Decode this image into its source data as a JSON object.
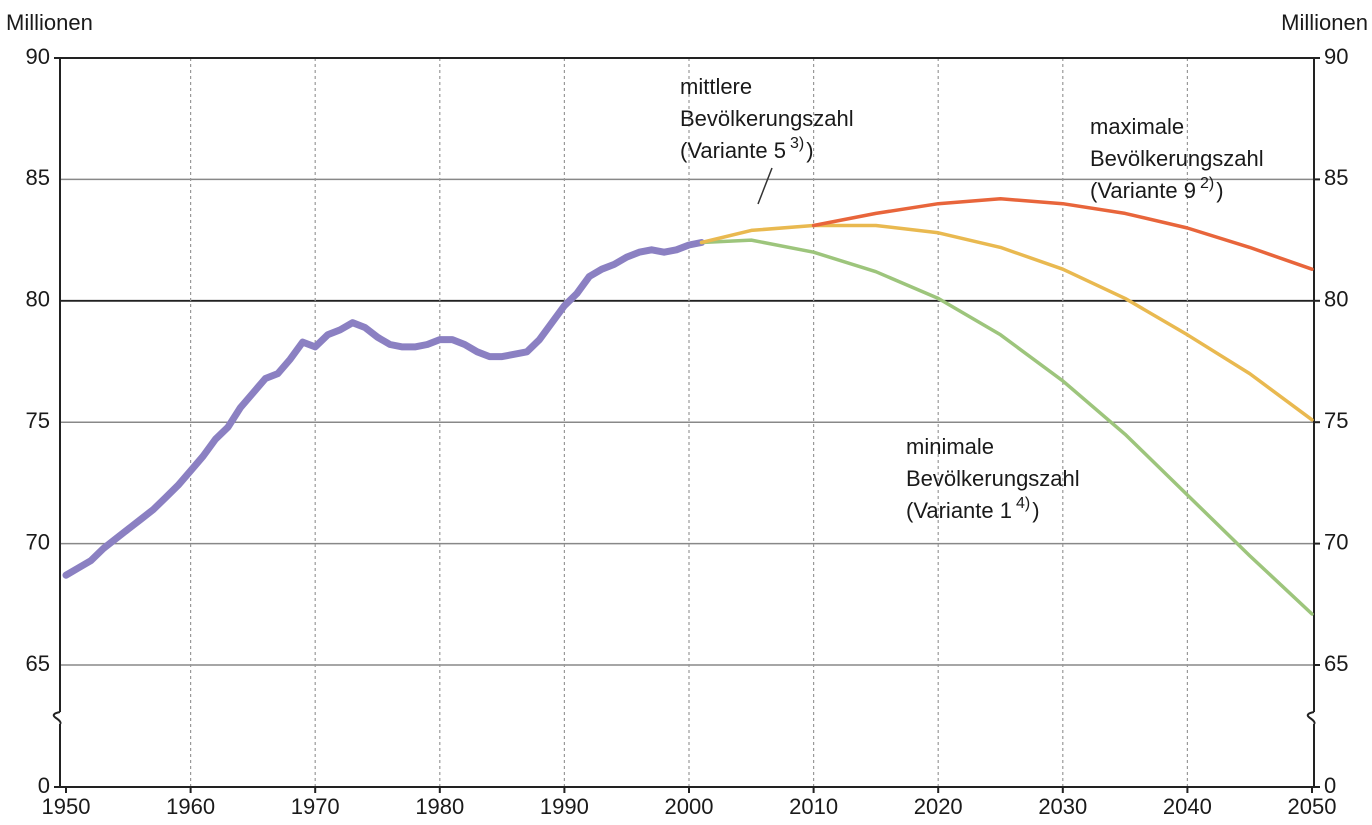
{
  "chart_data": {
    "type": "line",
    "y_label": "Millionen",
    "y2_label": "Millionen",
    "x": [
      1950,
      1951,
      1952,
      1953,
      1954,
      1955,
      1956,
      1957,
      1958,
      1959,
      1960,
      1961,
      1962,
      1963,
      1964,
      1965,
      1966,
      1967,
      1968,
      1969,
      1970,
      1971,
      1972,
      1973,
      1974,
      1975,
      1976,
      1977,
      1978,
      1979,
      1980,
      1981,
      1982,
      1983,
      1984,
      1985,
      1986,
      1987,
      1988,
      1989,
      1990,
      1991,
      1992,
      1993,
      1994,
      1995,
      1996,
      1997,
      1998,
      1999,
      2000,
      2001,
      2005,
      2010,
      2015,
      2020,
      2025,
      2030,
      2035,
      2040,
      2045,
      2050
    ],
    "series": [
      {
        "color": "#8b80c2",
        "width": 7,
        "values": [
          68.7,
          69.0,
          69.3,
          69.8,
          70.2,
          70.6,
          71.0,
          71.4,
          71.9,
          72.4,
          73.0,
          73.6,
          74.3,
          74.8,
          75.6,
          76.2,
          76.8,
          77.0,
          77.6,
          78.3,
          78.1,
          78.6,
          78.8,
          79.1,
          78.9,
          78.5,
          78.2,
          78.1,
          78.1,
          78.2,
          78.4,
          78.4,
          78.2,
          77.9,
          77.7,
          77.7,
          77.8,
          77.9,
          78.4,
          79.1,
          79.8,
          80.3,
          81.0,
          81.3,
          81.5,
          81.8,
          82.0,
          82.1,
          82.0,
          82.1,
          82.3,
          82.4,
          null,
          null,
          null,
          null,
          null,
          null,
          null,
          null,
          null,
          null
        ]
      },
      {
        "color": "#e9b950",
        "width": 3.5,
        "label": {
          "lines": [
            "mittlere",
            "Bevölkerungszahl"
          ],
          "variant": "(Variante 5",
          "note": "3)",
          "close": ")"
        },
        "values": [
          null,
          null,
          null,
          null,
          null,
          null,
          null,
          null,
          null,
          null,
          null,
          null,
          null,
          null,
          null,
          null,
          null,
          null,
          null,
          null,
          null,
          null,
          null,
          null,
          null,
          null,
          null,
          null,
          null,
          null,
          null,
          null,
          null,
          null,
          null,
          null,
          null,
          null,
          null,
          null,
          null,
          null,
          null,
          null,
          null,
          null,
          null,
          null,
          null,
          null,
          null,
          82.4,
          82.9,
          83.1,
          83.1,
          82.8,
          82.2,
          81.3,
          80.1,
          78.6,
          77.0,
          75.1
        ]
      },
      {
        "color": "#e8653b",
        "width": 3.5,
        "label": {
          "lines": [
            "maximale",
            "Bevölkerungszahl"
          ],
          "variant": "(Variante 9",
          "note": "2)",
          "close": ")"
        },
        "values": [
          null,
          null,
          null,
          null,
          null,
          null,
          null,
          null,
          null,
          null,
          null,
          null,
          null,
          null,
          null,
          null,
          null,
          null,
          null,
          null,
          null,
          null,
          null,
          null,
          null,
          null,
          null,
          null,
          null,
          null,
          null,
          null,
          null,
          null,
          null,
          null,
          null,
          null,
          null,
          null,
          null,
          null,
          null,
          null,
          null,
          null,
          null,
          null,
          null,
          null,
          null,
          null,
          null,
          83.1,
          83.6,
          84.0,
          84.2,
          84.0,
          83.6,
          83.0,
          82.2,
          81.3
        ]
      },
      {
        "color": "#9dc57c",
        "width": 3.5,
        "label": {
          "lines": [
            "minimale",
            "Bevölkerungszahl"
          ],
          "variant": "(Variante 1",
          "note": "4)",
          "close": ")"
        },
        "values": [
          null,
          null,
          null,
          null,
          null,
          null,
          null,
          null,
          null,
          null,
          null,
          null,
          null,
          null,
          null,
          null,
          null,
          null,
          null,
          null,
          null,
          null,
          null,
          null,
          null,
          null,
          null,
          null,
          null,
          null,
          null,
          null,
          null,
          null,
          null,
          null,
          null,
          null,
          null,
          null,
          null,
          null,
          null,
          null,
          null,
          null,
          null,
          null,
          null,
          null,
          null,
          82.4,
          82.5,
          82.0,
          81.2,
          80.1,
          78.6,
          76.7,
          74.5,
          72.0,
          69.5,
          67.1
        ]
      }
    ],
    "xlim": [
      1950,
      2050
    ],
    "xticks": [
      1950,
      1960,
      1970,
      1980,
      1990,
      2000,
      2010,
      2020,
      2030,
      2040,
      2050
    ],
    "ylim": [
      0,
      90
    ],
    "yticks": [
      0,
      65,
      70,
      75,
      80,
      85,
      90
    ],
    "y2lim": [
      0,
      90
    ],
    "y2ticks": [
      0,
      65,
      70,
      75,
      80,
      85,
      90
    ],
    "grid": true
  }
}
